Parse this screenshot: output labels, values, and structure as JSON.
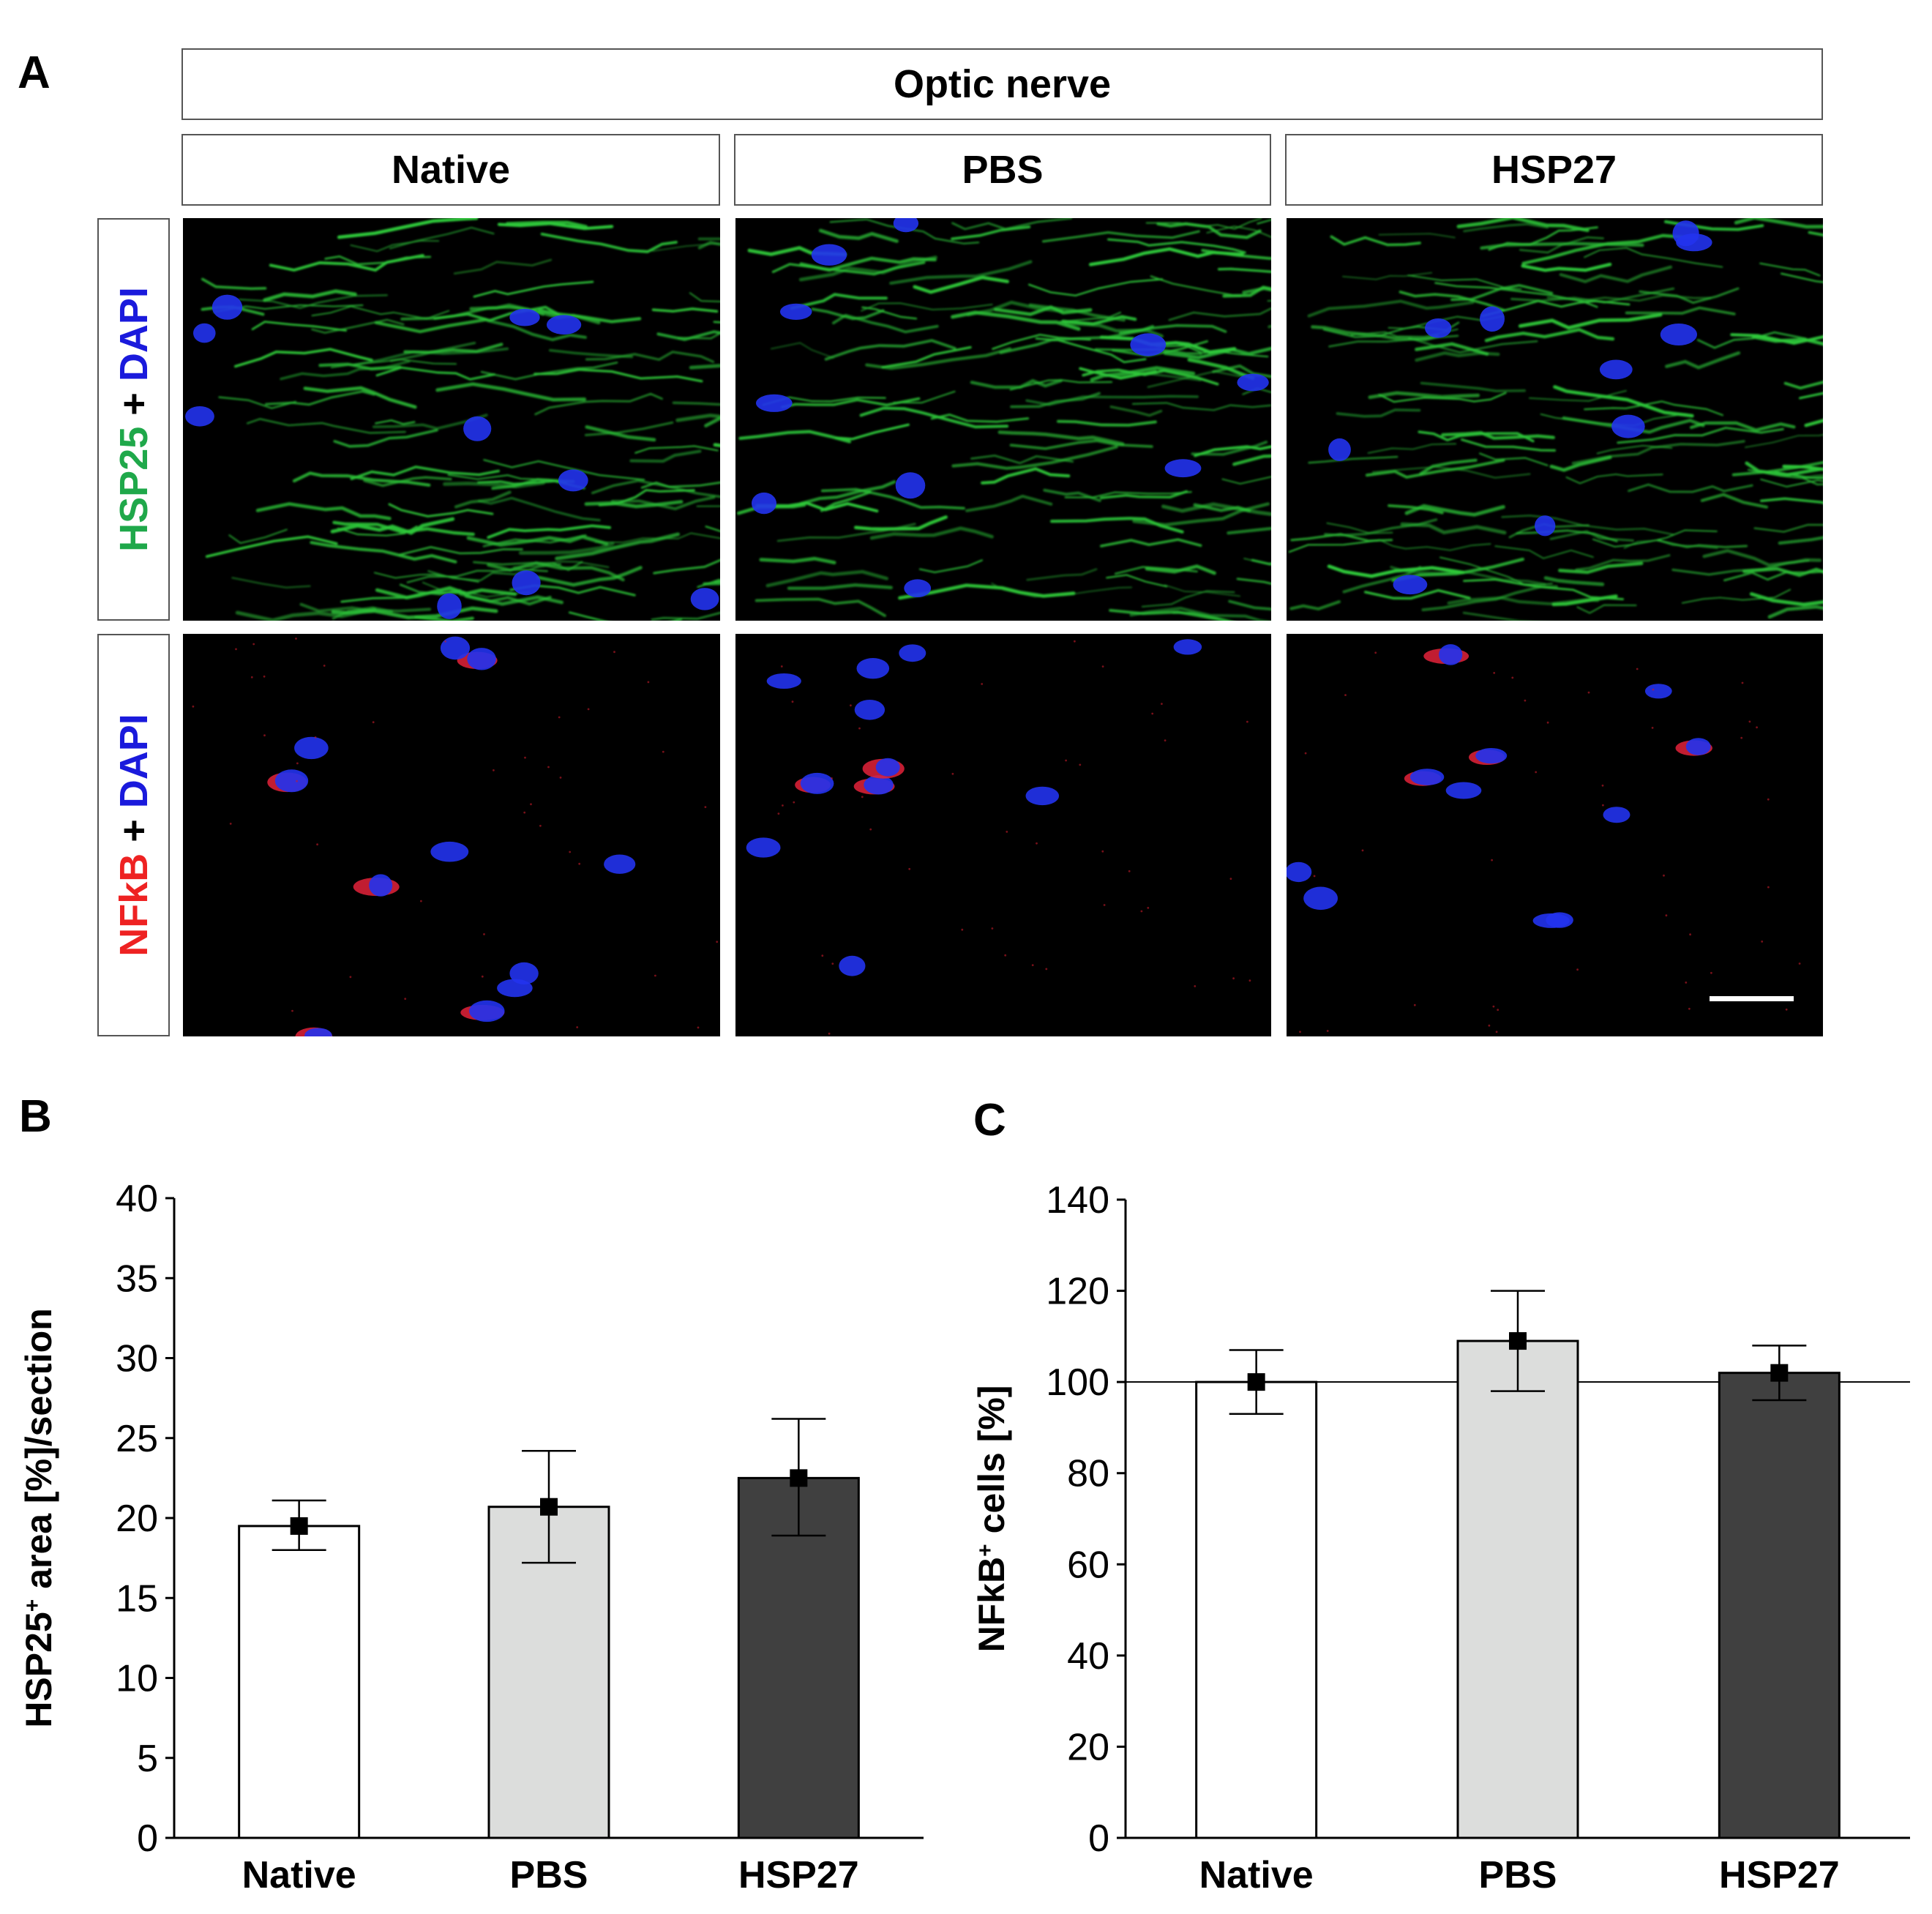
{
  "panels": {
    "a": {
      "letter": "A",
      "header": "Optic nerve",
      "columns": [
        "Native",
        "PBS",
        "HSP27"
      ],
      "rows": [
        {
          "marker": "HSP25",
          "plus": " + ",
          "counter": "DAPI",
          "marker_color": "#1fa84a",
          "counter_color": "#1a1adc"
        },
        {
          "marker": "NFkB",
          "plus": " + ",
          "counter": "DAPI",
          "marker_color": "#ee2222",
          "counter_color": "#1a1adc"
        }
      ]
    },
    "b": {
      "letter": "B"
    },
    "c": {
      "letter": "C"
    }
  },
  "chart_data": [
    {
      "type": "bar",
      "panel": "B",
      "categories": [
        "Native",
        "PBS",
        "HSP27"
      ],
      "values": [
        19.5,
        20.7,
        22.5
      ],
      "error_low": [
        18.0,
        17.2,
        18.9
      ],
      "error_high": [
        21.1,
        24.2,
        26.2
      ],
      "bar_colors": [
        "#ffffff",
        "#dcdddc",
        "#404040"
      ],
      "ylabel_parts": [
        "HSP25",
        "+",
        " area [%]/section"
      ],
      "ylim": [
        0,
        40
      ],
      "yticks": [
        0,
        5,
        10,
        15,
        20,
        25,
        30,
        35,
        40
      ],
      "reference_line": null
    },
    {
      "type": "bar",
      "panel": "C",
      "categories": [
        "Native",
        "PBS",
        "HSP27"
      ],
      "values": [
        100,
        109,
        102
      ],
      "error_low": [
        93,
        98,
        96
      ],
      "error_high": [
        107,
        120,
        108
      ],
      "bar_colors": [
        "#ffffff",
        "#dcdddc",
        "#404040"
      ],
      "ylabel_parts": [
        "NFkB",
        "+",
        " cells  [%]"
      ],
      "ylim": [
        0,
        140
      ],
      "yticks": [
        0,
        20,
        40,
        60,
        80,
        100,
        120,
        140
      ],
      "reference_line": 100
    }
  ]
}
